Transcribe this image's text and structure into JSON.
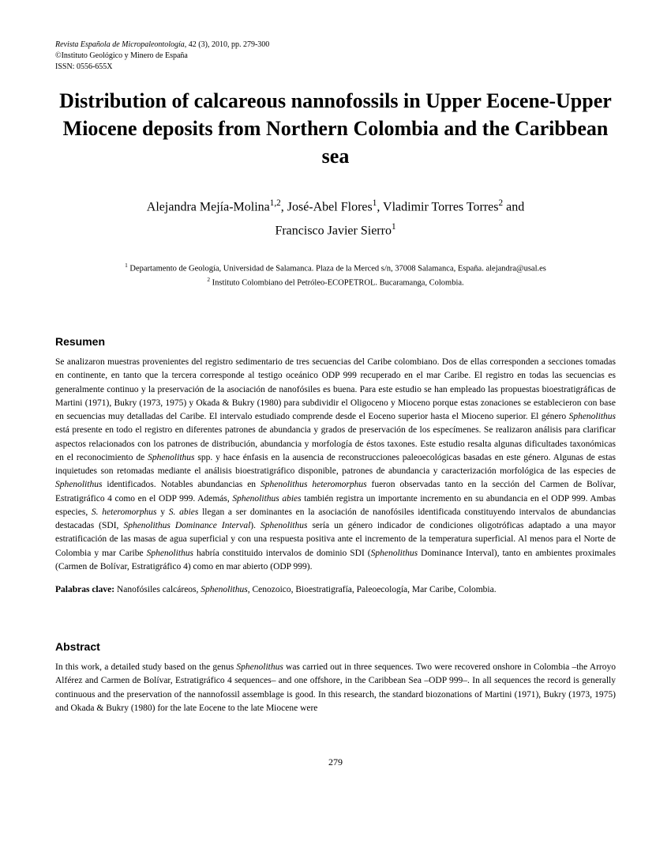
{
  "journal": {
    "line1_italic": "Revista Española de Micropaleontología,",
    "line1_rest": " 42 (3), 2010, pp. 279-300",
    "line2": "©Instituto Geológico y Minero de España",
    "line3": "ISSN: 0556-655X"
  },
  "title": "Distribution of calcareous nannofossils in Upper Eocene-Upper Miocene deposits from Northern Colombia and the Caribbean sea",
  "authors_line1": "Alejandra Mejía-Molina",
  "authors_sup1": "1,2",
  "authors_line1b": ", José-Abel Flores",
  "authors_sup2": "1",
  "authors_line1c": ", Vladimir Torres Torres",
  "authors_sup3": "2",
  "authors_line1d": " and",
  "authors_line2": "Francisco Javier Sierro",
  "authors_sup4": "1",
  "affil_sup1": "1",
  "affil1": " Departamento de Geología, Universidad de Salamanca. Plaza de la Merced s/n, 37008 Salamanca, España. alejandra@usal.es",
  "affil_sup2": "2",
  "affil2": " Instituto Colombiano del Petróleo-ECOPETROL. Bucaramanga, Colombia.",
  "resumen_heading": "Resumen",
  "resumen_body": "Se analizaron muestras provenientes del registro sedimentario de tres secuencias del Caribe colombiano. Dos de ellas corresponden a secciones tomadas en continente, en tanto que la tercera corresponde al testigo oceánico ODP 999 recuperado en el mar Caribe. El registro en todas las secuencias es generalmente continuo y la preservación de la asociación de nanofósiles es buena. Para este estudio se han empleado las propuestas bioestratigráficas de Martini (1971), Bukry (1973, 1975) y Okada & Bukry (1980) para subdividir el Oligoceno y Mioceno porque estas zonaciones se establecieron con base en secuencias muy detalladas del Caribe. El intervalo estudiado comprende desde el Eoceno superior hasta el Mioceno superior. El género <em>Sphenolithus</em> está presente en todo el registro en diferentes patrones de abundancia y grados de preservación de los especímenes. Se realizaron análisis para clarificar aspectos relacionados con los patrones de distribución, abundancia y morfología de éstos taxones. Este estudio resalta algunas dificultades taxonómicas en el reconocimiento de <em>Sphenolithus</em> spp. y hace énfasis en la ausencia de reconstrucciones paleoecológicas basadas en este género. Algunas de estas inquietudes son retomadas mediante el análisis bioestratigráfico disponible, patrones de abundancia y caracterización morfológica de las especies de <em>Sphenolithus</em> identificados. Notables abundancias en <em>Sphenolithus heteromorphus</em> fueron observadas tanto en la sección del Carmen de Bolívar, Estratigráfico 4 como en el ODP 999. Además, <em>Sphenolithus abies</em> también registra un importante incremento en su abundancia en el ODP 999. Ambas especies, <em>S. heteromorphus</em> y <em>S. abies</em> llegan a ser dominantes en la asociación de nanofósiles identificada constituyendo intervalos de abundancias destacadas (SDI, <em>Sphenolithus Dominance Interval</em>). <em>Sphenolithus</em> sería un género indicador de condiciones oligotróficas adaptado a una mayor estratificación de las masas de agua superficial y con una respuesta positiva ante el incremento de la temperatura superficial. Al menos para el Norte de Colombia y mar Caribe <em>Sphenolithus</em> habría constituido intervalos de dominio SDI (<em>Sphenolithus</em> Dominance Interval), tanto en ambientes proximales (Carmen de Bolívar, Estratigráfico 4) como en mar abierto (ODP 999).",
  "palabras_label": "Palabras clave:",
  "palabras_text": " Nanofósiles calcáreos, <em>Sphenolithus</em>, Cenozoico, Bioestratigrafía, Paleoecología, Mar Caribe, Colombia.",
  "abstract_heading": "Abstract",
  "abstract_body": "In this work, a detailed study based on the genus <em>Sphenolithus</em> was carried out in three sequences. Two were recovered onshore in Colombia –the Arroyo Alférez and Carmen de Bolívar, Estratigráfico 4 sequences– and one offshore, in the Caribbean Sea –ODP 999–. In all sequences the record is generally continuous and the preservation of the nannofossil assemblage is good. In this research, the standard biozonations of Martini (1971), Bukry (1973, 1975) and Okada & Bukry (1980) for the late Eocene to the late Miocene were",
  "page_number": "279"
}
